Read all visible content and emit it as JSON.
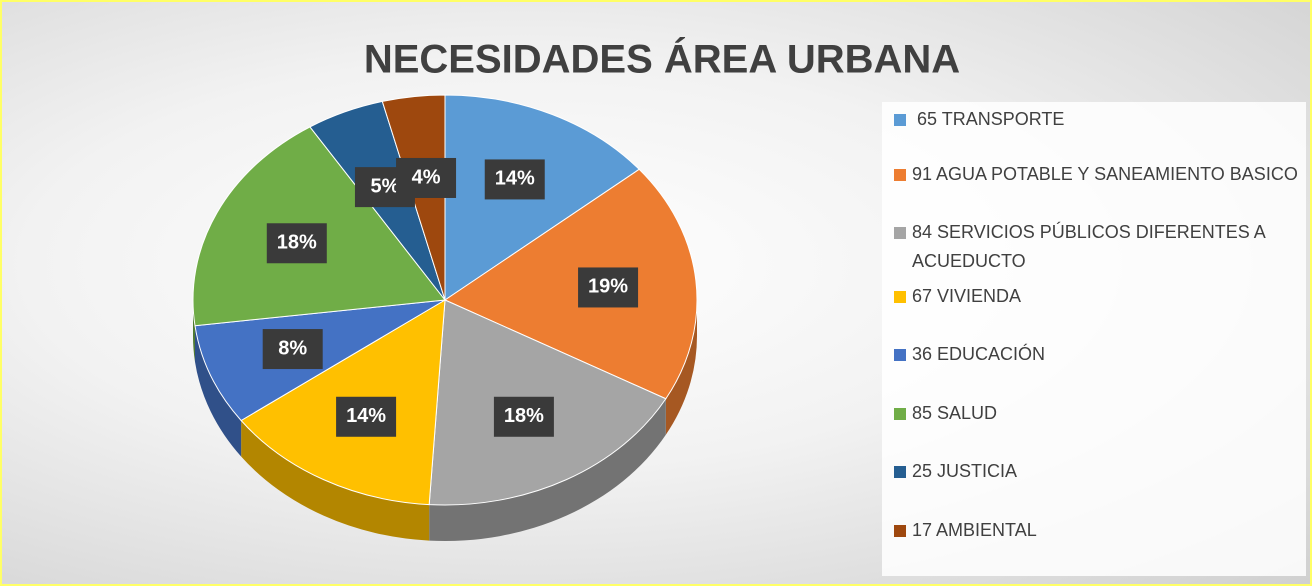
{
  "chart_data": {
    "type": "pie",
    "title": "NECESIDADES ÁREA URBANA",
    "categories": [
      " 65 TRANSPORTE",
      "91 AGUA POTABLE Y SANEAMIENTO BASICO",
      "84 SERVICIOS PÚBLICOS DIFERENTES A ACUEDUCTO",
      "67 VIVIENDA",
      "36 EDUCACIÓN",
      "85 SALUD",
      "25 JUSTICIA",
      "17 AMBIENTAL"
    ],
    "values": [
      14,
      19,
      18,
      14,
      8,
      18,
      5,
      4
    ],
    "value_labels": [
      "14%",
      "19%",
      "18%",
      "14%",
      "8%",
      "18%",
      "5%",
      "4%"
    ],
    "colors": [
      "#5b9bd5",
      "#ed7d31",
      "#a5a5a5",
      "#ffc000",
      "#4472c4",
      "#70ad47",
      "#255e91",
      "#9e480e"
    ],
    "legend": "right"
  }
}
